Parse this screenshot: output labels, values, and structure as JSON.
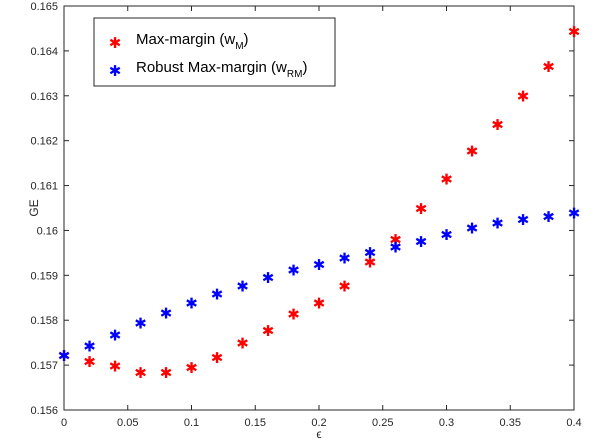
{
  "chart_data": {
    "type": "scatter",
    "xlabel": "ϵ",
    "ylabel": "GE",
    "xlim": [
      0,
      0.4
    ],
    "ylim": [
      0.156,
      0.165
    ],
    "x_ticks": [
      "0",
      "0.05",
      "0.1",
      "0.15",
      "0.2",
      "0.25",
      "0.3",
      "0.35",
      "0.4"
    ],
    "y_ticks": [
      "0.156",
      "0.157",
      "0.158",
      "0.159",
      "0.16",
      "0.161",
      "0.162",
      "0.163",
      "0.164",
      "0.165"
    ],
    "grid": false,
    "legend_position": "top-left",
    "x": [
      0,
      0.02,
      0.04,
      0.06,
      0.08,
      0.1,
      0.12,
      0.14,
      0.16,
      0.18,
      0.2,
      0.22,
      0.24,
      0.26,
      0.28,
      0.3,
      0.32,
      0.34,
      0.36,
      0.38,
      0.4
    ],
    "series": [
      {
        "legend_main": "Max-margin (w",
        "legend_sub": "M",
        "legend_end": ")",
        "color": "#ff0000",
        "values": [
          0.1572,
          0.15707,
          0.15697,
          0.15682,
          0.15682,
          0.15694,
          0.15716,
          0.15748,
          0.15776,
          0.15813,
          0.15837,
          0.15875,
          0.15929,
          0.15979,
          0.16048,
          0.16113,
          0.16176,
          0.16235,
          0.16298,
          0.16364,
          0.16442
        ]
      },
      {
        "legend_main": "Robust Max-margin (w",
        "legend_sub": "RM",
        "legend_end": ")",
        "color": "#0000ff",
        "values": [
          0.1572,
          0.15742,
          0.15766,
          0.15793,
          0.15815,
          0.15837,
          0.15857,
          0.15875,
          0.15894,
          0.15911,
          0.15923,
          0.15937,
          0.1595,
          0.15962,
          0.15974,
          0.1599,
          0.16004,
          0.16016,
          0.16023,
          0.1603,
          0.16038
        ]
      }
    ],
    "marker_glyph": "✱"
  }
}
